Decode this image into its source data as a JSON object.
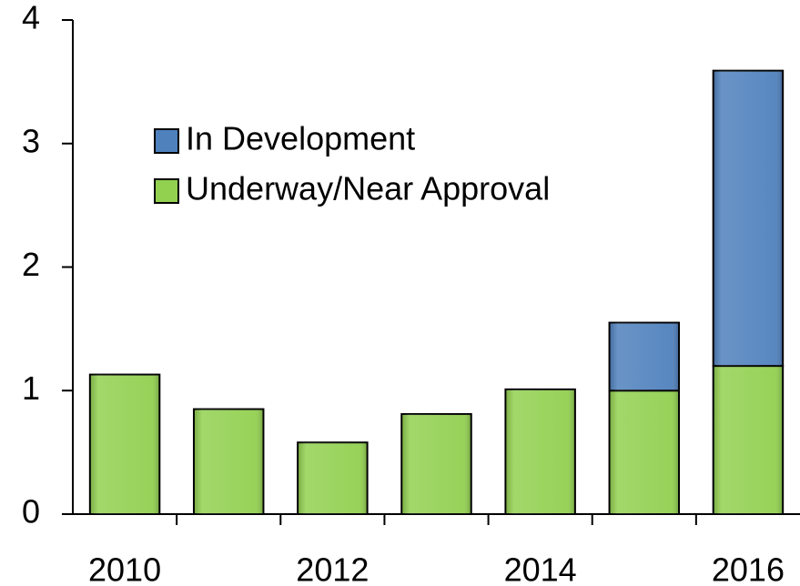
{
  "chart_data": {
    "type": "stacked_bar",
    "categories": [
      "2010",
      null,
      "2012",
      null,
      "2014",
      null,
      "2016"
    ],
    "series": [
      {
        "name": "Underway/Near Approval",
        "color": "#92d050",
        "values": [
          1.13,
          0.85,
          0.58,
          0.81,
          1.01,
          1.0,
          1.2
        ]
      },
      {
        "name": "In Development",
        "color": "#4f81bd",
        "values": [
          null,
          null,
          null,
          null,
          null,
          0.55,
          2.39
        ]
      }
    ],
    "ylim": [
      0,
      4
    ],
    "yticks": [
      0,
      1,
      2,
      3,
      4
    ],
    "legend": "upper left",
    "grid": false
  }
}
